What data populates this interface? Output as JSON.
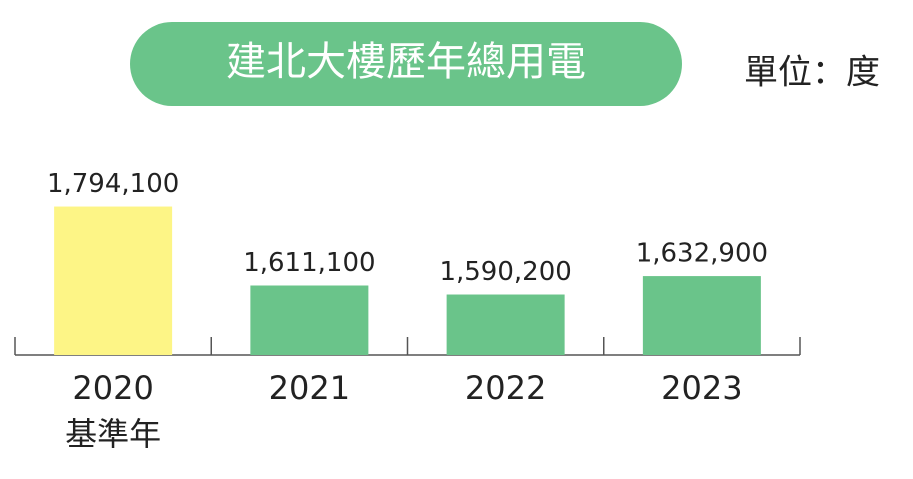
{
  "chart_data": {
    "type": "bar",
    "title": "建北大樓歷年總用電",
    "unit_label": "單位：度",
    "categories": [
      "2020",
      "2021",
      "2022",
      "2023"
    ],
    "category_note": "基準年",
    "values": [
      1794100,
      1611100,
      1590200,
      1632900
    ],
    "value_labels": [
      "1,794,100",
      "1,611,100",
      "1,590,200",
      "1,632,900"
    ],
    "colors": [
      "#fdf586",
      "#6ac48a",
      "#6ac48a",
      "#6ac48a"
    ],
    "title_color": "#6ac48a",
    "ylim": [
      1450000,
      1800000
    ]
  }
}
